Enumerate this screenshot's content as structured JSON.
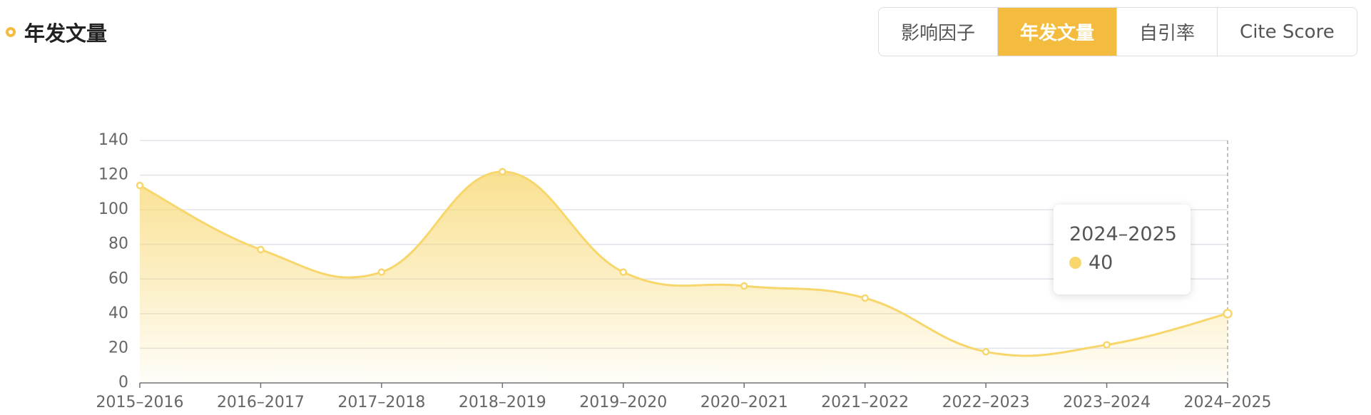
{
  "header": {
    "title": "年发文量",
    "tabs": [
      "影响因子",
      "年发文量",
      "自引率",
      "Cite Score"
    ],
    "active_tab": 1
  },
  "chart_data": {
    "type": "area",
    "categories": [
      "2015–2016",
      "2016–2017",
      "2017–2018",
      "2018–2019",
      "2019–2020",
      "2020–2021",
      "2021–2022",
      "2022–2023",
      "2023–2024",
      "2024–2025"
    ],
    "values": [
      114,
      77,
      64,
      122,
      64,
      56,
      49,
      18,
      22,
      40
    ],
    "color": "#f7d66b",
    "ylim": [
      0,
      140
    ],
    "yticks": [
      0,
      20,
      40,
      60,
      80,
      100,
      120,
      140
    ],
    "grid": true,
    "tooltip_index": 9
  }
}
